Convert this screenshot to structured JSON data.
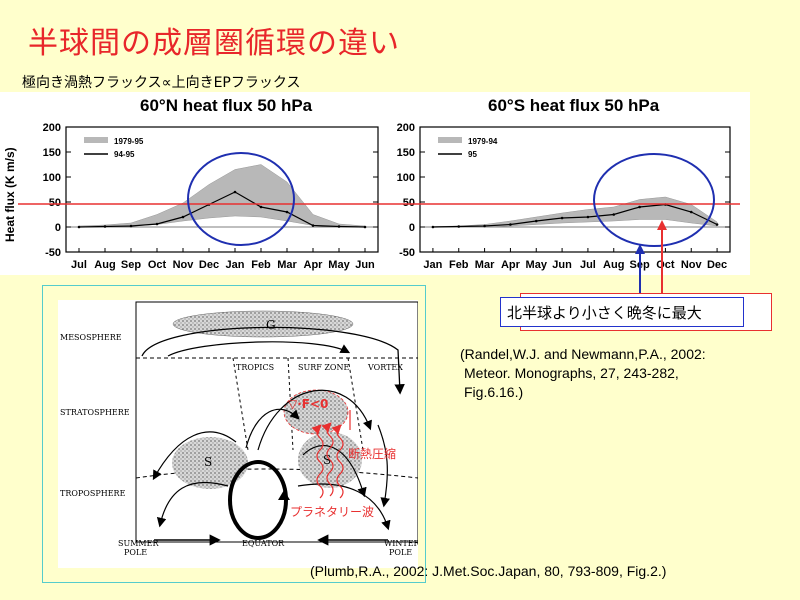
{
  "title": "半球間の成層圏循環の違い",
  "subtitle": "極向き渦熱フラックス∝上向きEPフラックス",
  "callout": "北半球より小さく晩冬に最大",
  "references": {
    "randel": [
      "(Randel,W.J. and Newmann,P.A., 2002:",
      "Meteor. Monographs, 27, 243-282,",
      "Fig.6.16.)"
    ],
    "plumb": "(Plumb,R.A., 2002: J.Met.Soc.Japan, 80, 793-809, Fig.2.)"
  },
  "colors": {
    "title": "#e8262a",
    "reference_line": "#e83030",
    "highlight_circle": "#1f2fb0",
    "diagram_frame": "#55cccc"
  },
  "chart_data": [
    {
      "type": "line",
      "title": "60°N heat flux 50 hPa",
      "ylabel": "Heat flux (K m/s)",
      "ylim": [
        -50,
        200
      ],
      "yticks": [
        "200",
        "150",
        "100",
        "50",
        "0",
        "-50"
      ],
      "categories": [
        "Jul",
        "Aug",
        "Sep",
        "Oct",
        "Nov",
        "Dec",
        "Jan",
        "Feb",
        "Mar",
        "Apr",
        "May",
        "Jun"
      ],
      "reference_line": 50,
      "legend": [
        "1979-95",
        "94-95"
      ],
      "series": [
        {
          "name": "1979-95",
          "kind": "band",
          "low": [
            0,
            0,
            2,
            5,
            12,
            18,
            22,
            20,
            12,
            3,
            0,
            0
          ],
          "high": [
            2,
            4,
            8,
            25,
            48,
            85,
            115,
            125,
            90,
            25,
            6,
            2
          ]
        },
        {
          "name": "94-95",
          "kind": "line",
          "values": [
            0,
            1,
            2,
            6,
            20,
            45,
            70,
            40,
            30,
            3,
            1,
            0
          ]
        }
      ]
    },
    {
      "type": "line",
      "title": "60°S heat flux 50 hPa",
      "ylabel": "",
      "ylim": [
        -50,
        200
      ],
      "yticks": [
        "200",
        "150",
        "100",
        "50",
        "0",
        "-50"
      ],
      "categories": [
        "Jan",
        "Feb",
        "Mar",
        "Apr",
        "May",
        "Jun",
        "Jul",
        "Aug",
        "Sep",
        "Oct",
        "Nov",
        "Dec"
      ],
      "reference_line": 50,
      "legend": [
        "1979-94",
        "95"
      ],
      "series": [
        {
          "name": "1979-94",
          "kind": "band",
          "low": [
            0,
            0,
            0,
            2,
            5,
            8,
            10,
            12,
            15,
            15,
            8,
            2
          ],
          "high": [
            1,
            2,
            5,
            12,
            20,
            28,
            35,
            40,
            55,
            60,
            45,
            10
          ]
        },
        {
          "name": "95",
          "kind": "line",
          "values": [
            0,
            1,
            2,
            5,
            12,
            18,
            20,
            25,
            40,
            45,
            30,
            5
          ]
        }
      ]
    }
  ],
  "diagram": {
    "labels": {
      "mesosphere": "MESOSPHERE",
      "stratosphere": "STRATOSPHERE",
      "troposphere": "TROPOSPHERE",
      "tropics": "TROPICS",
      "surf_zone": "SURF ZONE",
      "vortex": "VORTEX",
      "summer_pole": [
        "SUMMER",
        "POLE"
      ],
      "equator": "EQUATOR",
      "winter_pole": [
        "WINTER",
        "POLE"
      ],
      "g": "G",
      "s_left": "S",
      "s_right": "S"
    },
    "annotations": {
      "ep_div": "▽·F<0",
      "adiabatic": "断熱圧縮",
      "planetary": "プラネタリー波"
    }
  }
}
